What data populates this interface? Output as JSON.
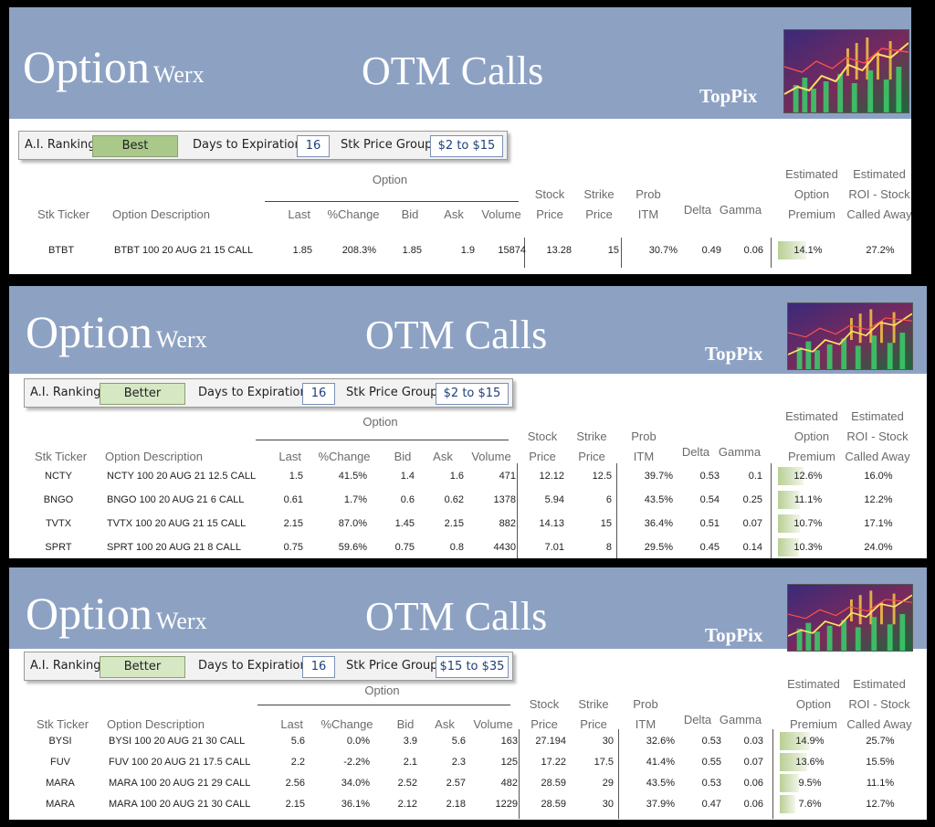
{
  "brand": {
    "main": "Option",
    "sub": "Werx"
  },
  "title": "OTM Calls",
  "badge": "TopPix",
  "labels": {
    "ai_ranking": "A.I. Ranking -",
    "days_to_expiration": "Days to Expiration -",
    "stk_price_group": "Stk Price Group -"
  },
  "columns": {
    "option_group": "Option",
    "stk_ticker": "Stk Ticker",
    "option_description": "Option Description",
    "last": "Last",
    "pct_change": "%Change",
    "bid": "Bid",
    "ask": "Ask",
    "volume": "Volume",
    "stock_price": [
      "Stock",
      "Price"
    ],
    "strike_price": [
      "Strike",
      "Price"
    ],
    "prob_itm": [
      "Prob",
      "ITM"
    ],
    "delta": "Delta",
    "gamma": "Gamma",
    "est_premium": [
      "Estimated",
      "Option",
      "Premium"
    ],
    "est_roi": [
      "Estimated",
      "ROI - Stock",
      "Called Away"
    ]
  },
  "colors": {
    "banner": "#8da2c3",
    "rank_best": "#a9c88a",
    "rank_better": "#d6e7c4",
    "premium_bar": "#b9cf94",
    "value_text": "#1e3f7a"
  },
  "thumbnail_icon": "stock-chart-thumbnail",
  "panels": [
    {
      "ranking": "Best",
      "days": "16",
      "price_group": "$2 to $15",
      "rows": [
        {
          "ticker": "BTBT",
          "desc": "BTBT 100 20 AUG 21 15 CALL",
          "last": "1.85",
          "change": "208.3%",
          "bid": "1.85",
          "ask": "1.9",
          "volume": "15874",
          "stock": "13.28",
          "strike": "15",
          "prob": "30.7%",
          "delta": "0.49",
          "gamma": "0.06",
          "premium": "14.1%",
          "premium_value": 14.1,
          "roi": "27.2%"
        }
      ]
    },
    {
      "ranking": "Better",
      "days": "16",
      "price_group": "$2 to $15",
      "rows": [
        {
          "ticker": "NCTY",
          "desc": "NCTY 100 20 AUG 21 12.5 CALL",
          "last": "1.5",
          "change": "41.5%",
          "bid": "1.4",
          "ask": "1.6",
          "volume": "471",
          "stock": "12.12",
          "strike": "12.5",
          "prob": "39.7%",
          "delta": "0.53",
          "gamma": "0.1",
          "premium": "12.6%",
          "premium_value": 12.6,
          "roi": "16.0%"
        },
        {
          "ticker": "BNGO",
          "desc": "BNGO 100 20 AUG 21 6 CALL",
          "last": "0.61",
          "change": "1.7%",
          "bid": "0.6",
          "ask": "0.62",
          "volume": "1378",
          "stock": "5.94",
          "strike": "6",
          "prob": "43.5%",
          "delta": "0.54",
          "gamma": "0.25",
          "premium": "11.1%",
          "premium_value": 11.1,
          "roi": "12.2%"
        },
        {
          "ticker": "TVTX",
          "desc": "TVTX 100 20 AUG 21 15 CALL",
          "last": "2.15",
          "change": "87.0%",
          "bid": "1.45",
          "ask": "2.15",
          "volume": "882",
          "stock": "14.13",
          "strike": "15",
          "prob": "36.4%",
          "delta": "0.51",
          "gamma": "0.07",
          "premium": "10.7%",
          "premium_value": 10.7,
          "roi": "17.1%"
        },
        {
          "ticker": "SPRT",
          "desc": "SPRT 100 20 AUG 21 8 CALL",
          "last": "0.75",
          "change": "59.6%",
          "bid": "0.75",
          "ask": "0.8",
          "volume": "4430",
          "stock": "7.01",
          "strike": "8",
          "prob": "29.5%",
          "delta": "0.45",
          "gamma": "0.14",
          "premium": "10.3%",
          "premium_value": 10.3,
          "roi": "24.0%"
        }
      ]
    },
    {
      "ranking": "Better",
      "days": "16",
      "price_group": "$15 to $35",
      "rows": [
        {
          "ticker": "BYSI",
          "desc": "BYSI 100 20 AUG 21 30 CALL",
          "last": "5.6",
          "change": "0.0%",
          "bid": "3.9",
          "ask": "5.6",
          "volume": "163",
          "stock": "27.194",
          "strike": "30",
          "prob": "32.6%",
          "delta": "0.53",
          "gamma": "0.03",
          "premium": "14.9%",
          "premium_value": 14.9,
          "roi": "25.7%"
        },
        {
          "ticker": "FUV",
          "desc": "FUV 100 20 AUG 21 17.5 CALL",
          "last": "2.2",
          "change": "-2.2%",
          "bid": "2.1",
          "ask": "2.3",
          "volume": "125",
          "stock": "17.22",
          "strike": "17.5",
          "prob": "41.4%",
          "delta": "0.55",
          "gamma": "0.07",
          "premium": "13.6%",
          "premium_value": 13.6,
          "roi": "15.5%"
        },
        {
          "ticker": "MARA",
          "desc": "MARA 100 20 AUG 21 29 CALL",
          "last": "2.56",
          "change": "34.0%",
          "bid": "2.52",
          "ask": "2.57",
          "volume": "482",
          "stock": "28.59",
          "strike": "29",
          "prob": "43.5%",
          "delta": "0.53",
          "gamma": "0.06",
          "premium": "9.5%",
          "premium_value": 9.5,
          "roi": "11.1%"
        },
        {
          "ticker": "MARA",
          "desc": "MARA 100 20 AUG 21 30 CALL",
          "last": "2.15",
          "change": "36.1%",
          "bid": "2.12",
          "ask": "2.18",
          "volume": "1229",
          "stock": "28.59",
          "strike": "30",
          "prob": "37.9%",
          "delta": "0.47",
          "gamma": "0.06",
          "premium": "7.6%",
          "premium_value": 7.6,
          "roi": "12.7%"
        }
      ]
    }
  ]
}
